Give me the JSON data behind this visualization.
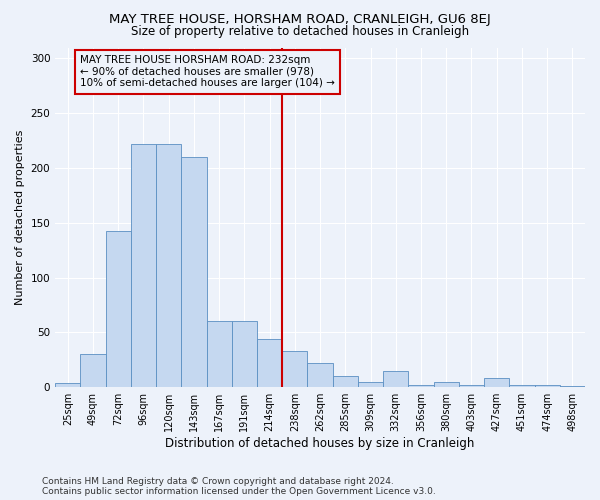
{
  "title": "MAY TREE HOUSE, HORSHAM ROAD, CRANLEIGH, GU6 8EJ",
  "subtitle": "Size of property relative to detached houses in Cranleigh",
  "xlabel": "Distribution of detached houses by size in Cranleigh",
  "ylabel": "Number of detached properties",
  "categories": [
    "25sqm",
    "49sqm",
    "72sqm",
    "96sqm",
    "120sqm",
    "143sqm",
    "167sqm",
    "191sqm",
    "214sqm",
    "238sqm",
    "262sqm",
    "285sqm",
    "309sqm",
    "332sqm",
    "356sqm",
    "380sqm",
    "403sqm",
    "427sqm",
    "451sqm",
    "474sqm",
    "498sqm"
  ],
  "values": [
    4,
    30,
    143,
    222,
    222,
    210,
    60,
    60,
    44,
    33,
    22,
    10,
    5,
    15,
    2,
    5,
    2,
    8,
    2,
    2,
    1
  ],
  "bar_color": "#c5d8f0",
  "bar_edge_color": "#5a8fc2",
  "vline_color": "#cc0000",
  "annotation_text": "MAY TREE HOUSE HORSHAM ROAD: 232sqm\n← 90% of detached houses are smaller (978)\n10% of semi-detached houses are larger (104) →",
  "annotation_box_color": "#cc0000",
  "background_color": "#edf2fa",
  "grid_color": "#ffffff",
  "ylim": [
    0,
    310
  ],
  "yticks": [
    0,
    50,
    100,
    150,
    200,
    250,
    300
  ],
  "footer": "Contains HM Land Registry data © Crown copyright and database right 2024.\nContains public sector information licensed under the Open Government Licence v3.0.",
  "title_fontsize": 9.5,
  "subtitle_fontsize": 8.5,
  "xlabel_fontsize": 8.5,
  "ylabel_fontsize": 8,
  "tick_fontsize": 7,
  "annotation_fontsize": 7.5,
  "footer_fontsize": 6.5
}
